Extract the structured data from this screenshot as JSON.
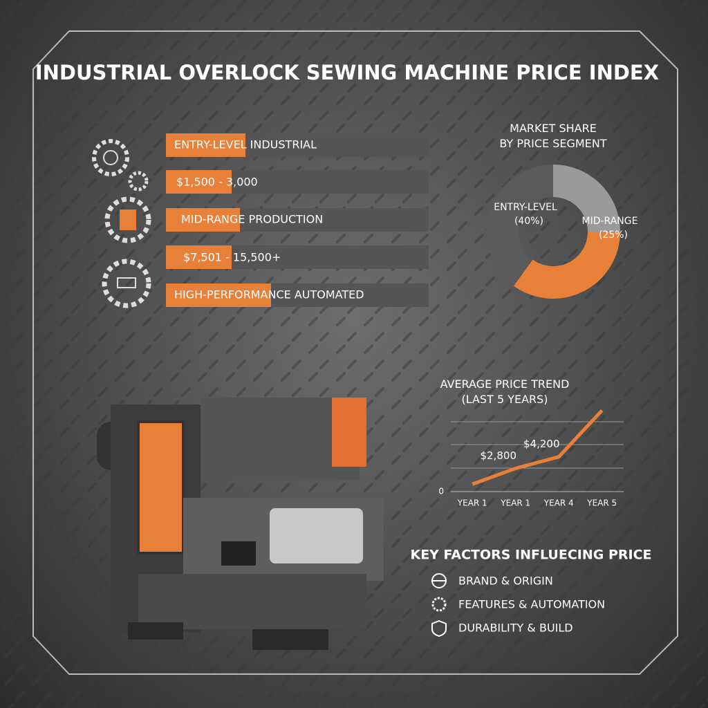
{
  "title": "INDUSTRIAL OVERLOCK SEWING MACHINE PRICE INDEX",
  "tiers": [
    "ENTRY-LEVEL INDUSTRIAL",
    "$1,500 - 3,000",
    "MID-RANGE PRODUCTION",
    "$7,501 - 15,500+",
    "HIGH-PERFORMANCE AUTOMATED"
  ],
  "factors": {
    "heading": "KEY FACTORS INFLUECING PRICE",
    "items": [
      "BRAND & ORIGIN",
      "FEATURES & AUTOMATION",
      "DURABILITY & BUILD"
    ]
  },
  "chart_data": [
    {
      "type": "pie",
      "title": "MARKET SHARE BY PRICE SEGMENT",
      "donut": true,
      "categories": [
        "MID-RANGE",
        null,
        "ENTRY-LEVEL"
      ],
      "values": [
        25,
        35,
        40
      ],
      "value_labels": [
        "(25%)",
        null,
        "(40%)"
      ],
      "colors": [
        "#9a9a9a",
        "#e8803a",
        "#5a5a5a"
      ]
    },
    {
      "type": "line",
      "title": "AVERAGE PRICE TREND (LAST 5 YEARS)",
      "categories": [
        "YEAR 1",
        "YEAR 1",
        "YEAR 4",
        "YEAR 5"
      ],
      "values": [
        900,
        2800,
        4200,
        9800
      ],
      "value_labels": [
        null,
        "$2,800",
        "$4,200",
        null
      ],
      "color": "#e8803a",
      "ylim": [
        0,
        12600
      ],
      "yticks": [
        0
      ]
    }
  ]
}
